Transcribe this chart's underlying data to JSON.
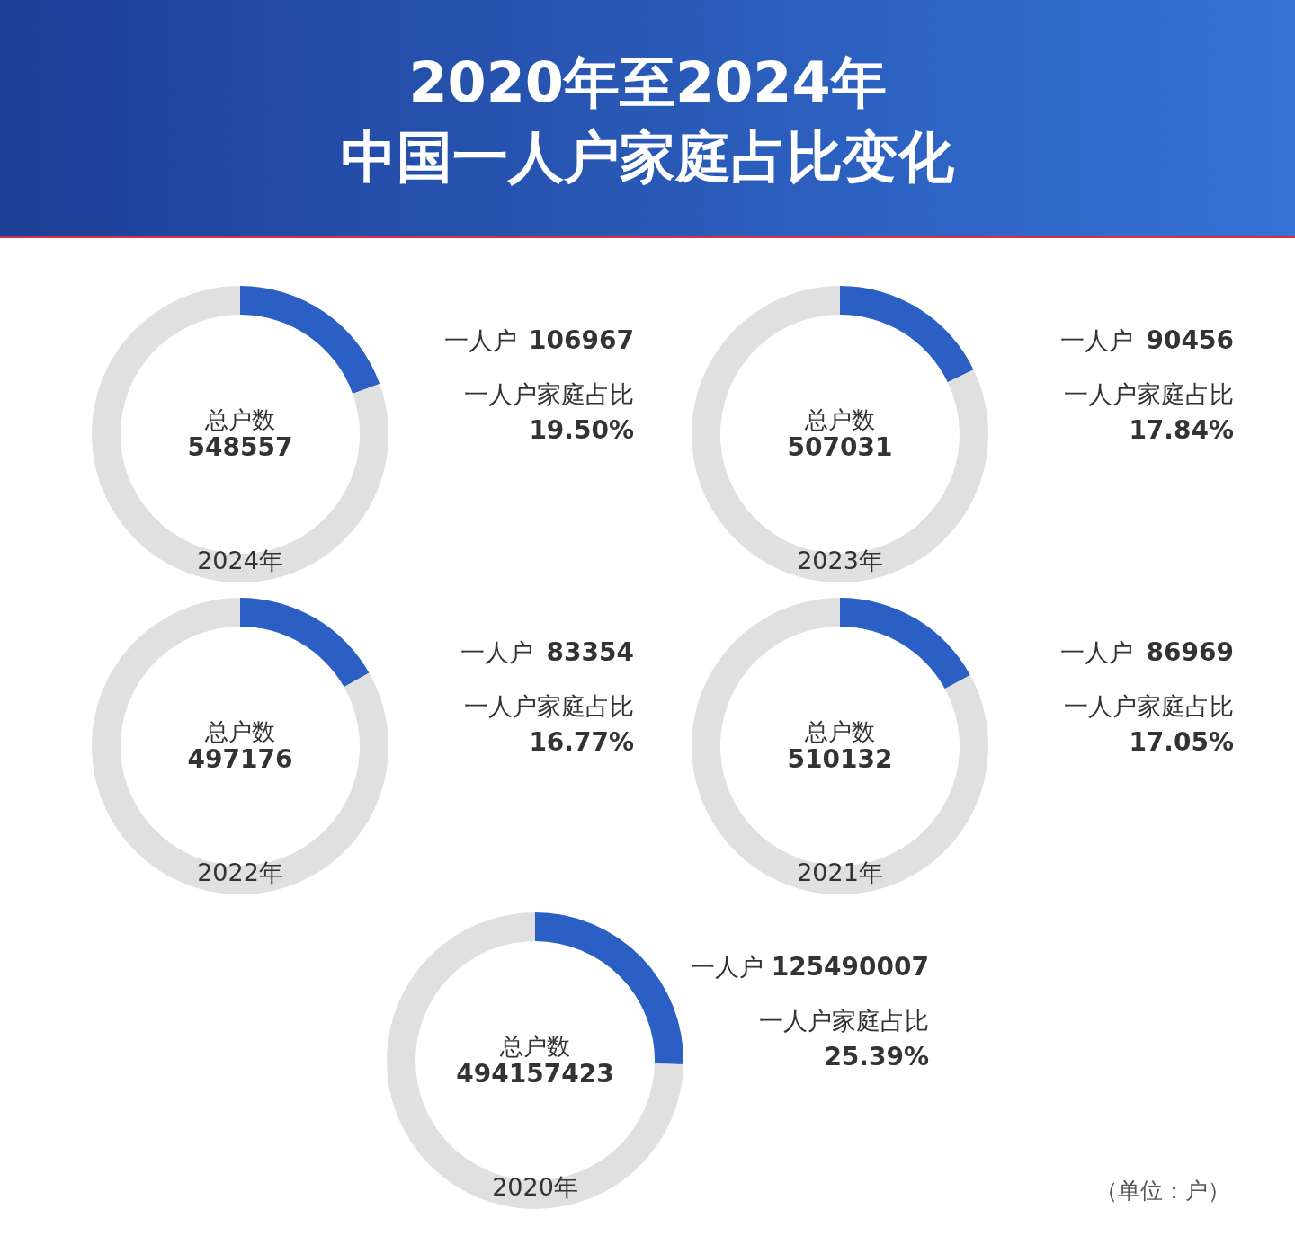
{
  "chart_data": [
    {
      "type": "donut",
      "title": "2020年至2024年",
      "subtitle": "中国一人户家庭占比变化",
      "xlabel": "2024年",
      "categories": [
        "一人户",
        null
      ],
      "values": [
        19.5,
        80.5
      ],
      "colors": [
        "#2c5fc4",
        "#e0e0e0"
      ],
      "annotations": [
        "一人户家庭占比",
        "19.50%",
        "106967",
        "总户数",
        "548557"
      ]
    },
    {
      "type": "donut",
      "xlabel": "2023年",
      "categories": [
        "一人户",
        null
      ],
      "values": [
        17.84,
        82.16
      ],
      "colors": [
        "#2c5fc4",
        "#e0e0e0"
      ],
      "annotations": [
        "一人户家庭占比",
        "17.84%",
        "90456",
        "总户数",
        "507031"
      ]
    },
    {
      "type": "donut",
      "xlabel": "2022年",
      "categories": [
        "一人户",
        null
      ],
      "values": [
        16.77,
        83.23
      ],
      "colors": [
        "#2c5fc4",
        "#e0e0e0"
      ],
      "annotations": [
        "一人户家庭占比",
        "16.77%",
        "83354",
        "总户数",
        "497176"
      ]
    },
    {
      "type": "donut",
      "xlabel": "2021年",
      "categories": [
        "一人户",
        null
      ],
      "values": [
        17.05,
        82.95
      ],
      "colors": [
        "#2c5fc4",
        "#e0e0e0"
      ],
      "annotations": [
        "一人户家庭占比",
        "17.05%",
        "86969",
        "总户数",
        "510132"
      ]
    },
    {
      "type": "donut",
      "xlabel": "2020年",
      "categories": [
        "一人户",
        null
      ],
      "values": [
        25.39,
        74.61
      ],
      "colors": [
        "#2c5fc4",
        "#e0e0e0"
      ],
      "annotations": [
        "一人户家庭占比",
        "25.39%",
        "125490007",
        "总户数",
        "494157423",
        "（单位：户）"
      ]
    }
  ]
}
